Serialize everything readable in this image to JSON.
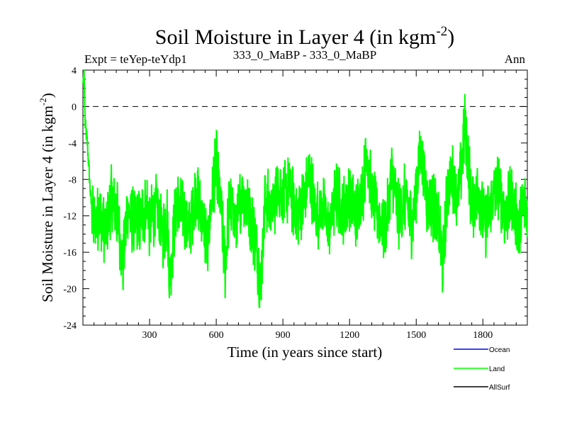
{
  "chart_data": {
    "type": "line",
    "title": "Soil Moisture in Layer 4 (in kgm",
    "title_superscript": "-2",
    "title_close": ")",
    "subtitle_left": "Expt = teYep-teYdp1",
    "subtitle_center": "333_0_MaBP - 333_0_MaBP",
    "subtitle_right": "Ann",
    "xlabel": "Time (in years since start)",
    "ylabel": "Soil Moisture in Layer 4 (in kgm",
    "ylabel_superscript": "-2",
    "ylabel_close": ")",
    "xlim": [
      0,
      2000
    ],
    "ylim": [
      -24,
      4
    ],
    "xticks": [
      300,
      600,
      900,
      1200,
      1500,
      1800
    ],
    "yticks": [
      4,
      0,
      -4,
      -8,
      -12,
      -16,
      -20,
      -24
    ],
    "reference_line": 0,
    "legend_position": "bottom-right",
    "series": [
      {
        "name": "Ocean",
        "color": "#0000ff",
        "values": []
      },
      {
        "name": "Land",
        "color": "#00ff00",
        "x": [
          0,
          5,
          10,
          20,
          35,
          50,
          75,
          100,
          130,
          160,
          180,
          200,
          230,
          260,
          290,
          300,
          330,
          360,
          380,
          390,
          420,
          450,
          480,
          510,
          540,
          560,
          580,
          600,
          620,
          640,
          660,
          690,
          720,
          750,
          780,
          800,
          820,
          850,
          880,
          900,
          930,
          960,
          990,
          1020,
          1050,
          1080,
          1110,
          1140,
          1170,
          1200,
          1230,
          1260,
          1280,
          1300,
          1330,
          1360,
          1390,
          1420,
          1450,
          1480,
          1500,
          1520,
          1550,
          1580,
          1600,
          1620,
          1640,
          1660,
          1690,
          1720,
          1750,
          1780,
          1810,
          1840,
          1870,
          1900,
          1930,
          1960,
          1990,
          2000
        ],
        "values": [
          2.5,
          4.0,
          -2.0,
          -4.0,
          -10.0,
          -13.0,
          -11.5,
          -14.0,
          -10.0,
          -12.5,
          -17.5,
          -11.0,
          -13.0,
          -12.5,
          -10.5,
          -13.0,
          -11.0,
          -14.0,
          -12.0,
          -19.0,
          -10.5,
          -12.0,
          -13.5,
          -9.0,
          -12.5,
          -15.5,
          -10.0,
          -6.0,
          -11.0,
          -17.5,
          -10.5,
          -13.0,
          -9.0,
          -12.0,
          -15.0,
          -20.0,
          -10.0,
          -11.5,
          -8.5,
          -10.0,
          -9.0,
          -12.0,
          -10.5,
          -7.5,
          -12.0,
          -11.0,
          -13.5,
          -9.5,
          -11.5,
          -10.0,
          -12.0,
          -9.0,
          -5.0,
          -10.0,
          -11.5,
          -14.0,
          -7.5,
          -12.0,
          -10.0,
          -13.0,
          -9.0,
          -4.5,
          -10.5,
          -11.0,
          -13.0,
          -17.5,
          -9.5,
          -7.5,
          -10.0,
          -2.0,
          -11.0,
          -9.5,
          -13.0,
          -10.5,
          -8.5,
          -12.0,
          -10.0,
          -13.5,
          -10.5,
          -12.0
        ]
      },
      {
        "name": "AllSurf",
        "color": "#000000",
        "values": []
      }
    ]
  }
}
